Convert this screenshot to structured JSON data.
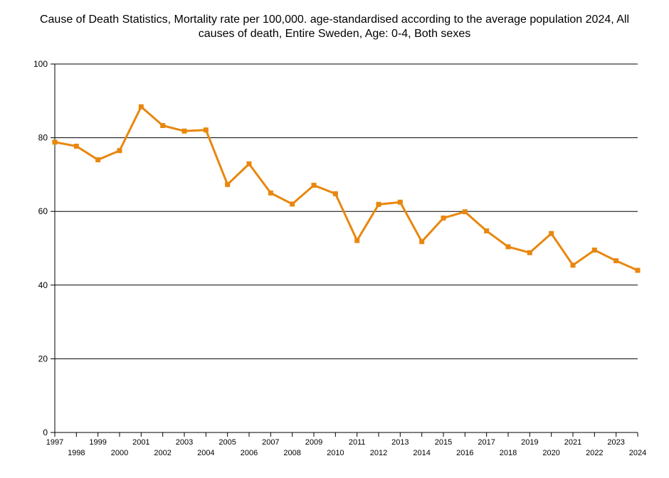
{
  "chart_data": {
    "type": "line",
    "title_line1": "Cause of Death Statistics, Mortality rate per 100,000. age-standardised according to the average population 2024, All",
    "title_line2": "causes of death, Entire Sweden, Age: 0-4, Both sexes",
    "xlabel": "",
    "ylabel": "",
    "ylim": [
      0,
      100
    ],
    "yticks": [
      "0",
      "20",
      "40",
      "60",
      "80",
      "100"
    ],
    "grid": true,
    "x": [
      "1997",
      "1998",
      "1999",
      "2000",
      "2001",
      "2002",
      "2003",
      "2004",
      "2005",
      "2006",
      "2007",
      "2008",
      "2009",
      "2010",
      "2011",
      "2012",
      "2013",
      "2014",
      "2015",
      "2016",
      "2017",
      "2018",
      "2019",
      "2020",
      "2021",
      "2022",
      "2023",
      "2024"
    ],
    "series": [
      {
        "color": "#E8870E",
        "values": [
          78.8,
          77.7,
          74.0,
          76.5,
          88.4,
          83.3,
          81.8,
          82.1,
          67.3,
          72.9,
          65.0,
          62.0,
          67.1,
          64.8,
          52.1,
          61.9,
          62.5,
          51.8,
          58.2,
          59.9,
          54.7,
          50.4,
          48.8,
          54.0,
          45.4,
          49.5,
          46.6,
          44.0
        ]
      }
    ]
  }
}
